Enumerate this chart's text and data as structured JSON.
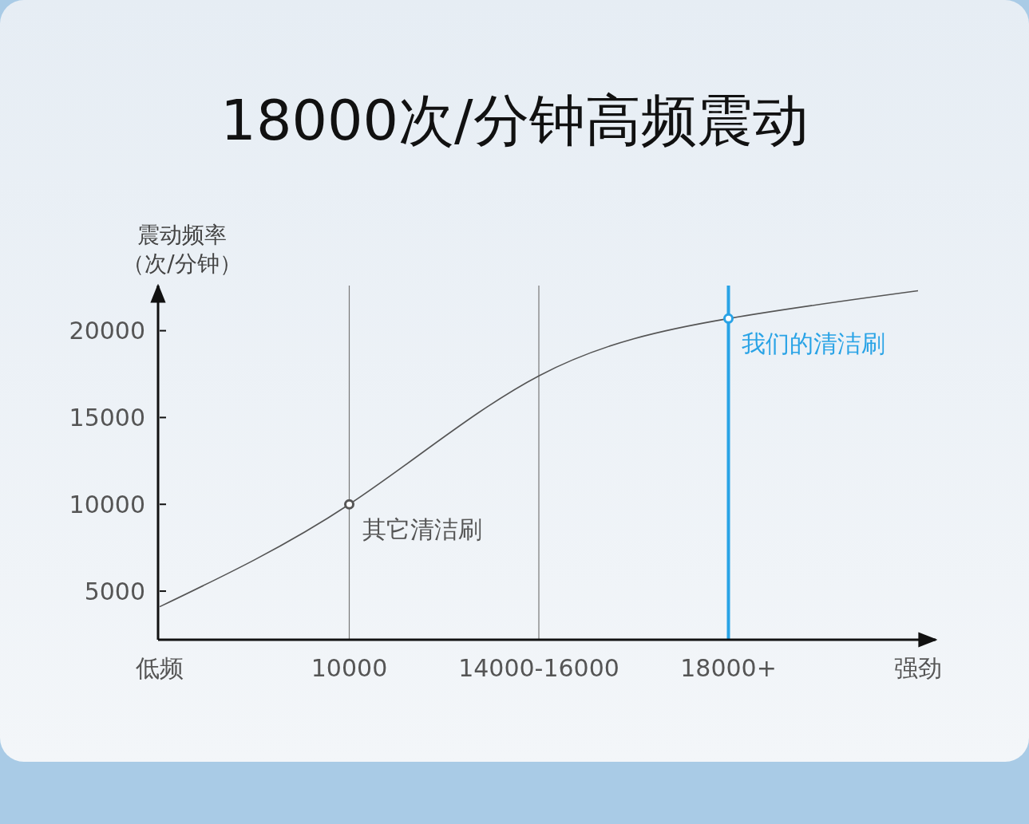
{
  "chart_data": {
    "type": "line",
    "title": "18000次/分钟高频震动",
    "ylabel": "震动频率（次/分钟）",
    "categories": [
      "低频",
      "10000",
      "14000-16000",
      "18000+",
      "强劲"
    ],
    "series": [
      {
        "color": "#555555",
        "values": [
          4100,
          10000,
          17400,
          20700,
          22300
        ]
      },
      {
        "type": "scatter",
        "marker": "circle",
        "x": [
          "10000",
          "18000+"
        ],
        "values": [
          10000,
          20700
        ],
        "colors": [
          "#555555",
          "#29a3e6"
        ]
      }
    ],
    "ylim": [
      2200,
      22600
    ],
    "yticks": [
      5000,
      10000,
      15000,
      20000
    ],
    "grid": false,
    "line_style": "solid",
    "ref_lines": [
      {
        "axis": "x",
        "value": "10000",
        "color": "#777777"
      },
      {
        "axis": "x",
        "value": "14000-16000",
        "color": "#777777"
      },
      {
        "axis": "x",
        "value": "18000+",
        "color": "#29a3e6"
      }
    ],
    "annotations": [
      {
        "text": "其它清洁刷",
        "x": "10000",
        "y": 10000
      },
      {
        "text": "我们的清洁刷",
        "x": "18000+",
        "y": 20700
      }
    ]
  }
}
